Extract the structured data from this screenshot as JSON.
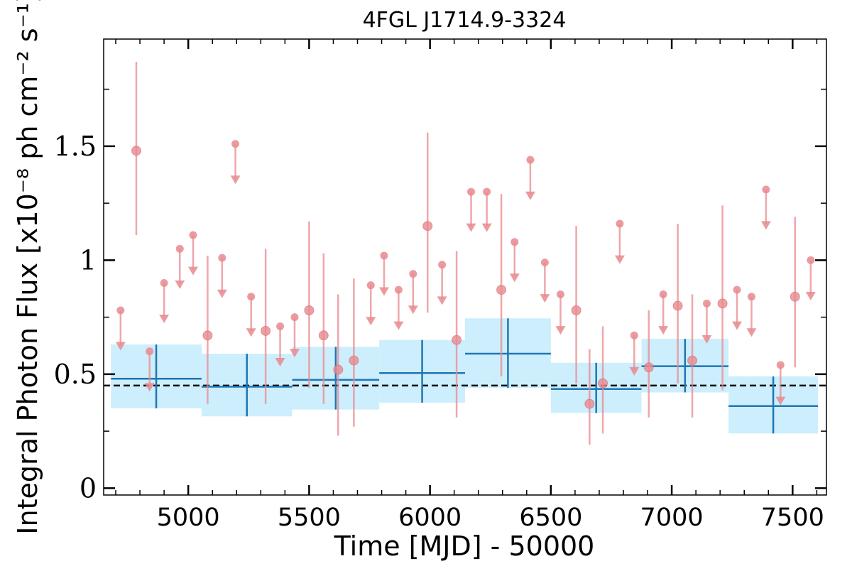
{
  "chart_data": {
    "type": "scatter",
    "title": "4FGL J1714.9-3324",
    "xlabel": "Time [MJD] - 50000",
    "ylabel": "Integral Photon Flux [x10⁻⁸ ph cm⁻² s⁻¹]",
    "xlim": [
      4650,
      7640
    ],
    "ylim": [
      -0.03,
      1.97
    ],
    "x_ticks": [
      5000,
      5500,
      6000,
      6500,
      7000,
      7500
    ],
    "x_tick_labels": [
      "5000",
      "5500",
      "6000",
      "6500",
      "7000",
      "7500"
    ],
    "y_ticks": [
      0,
      0.5,
      1,
      1.5
    ],
    "y_tick_labels": [
      "0",
      "0.5",
      "1",
      "1.5"
    ],
    "grid": false,
    "colors": {
      "short_bins": "#e88a8e",
      "long_bins": "#1f77b4",
      "band": "#cdeefc",
      "reference": "#000000"
    },
    "reference_line": {
      "y": 0.45,
      "style": "dashed"
    },
    "series": [
      {
        "points": [
          {
            "x": 4785,
            "y": 1.48,
            "yerr_low": 1.11,
            "yerr_high": 1.87
          },
          {
            "x": 5080,
            "y": 0.67,
            "yerr_low": 0.37,
            "yerr_high": 1.02
          },
          {
            "x": 5320,
            "y": 0.69,
            "yerr_low": 0.37,
            "yerr_high": 1.05
          },
          {
            "x": 5500,
            "y": 0.78,
            "yerr_low": 0.44,
            "yerr_high": 1.17
          },
          {
            "x": 5560,
            "y": 0.67,
            "yerr_low": 0.37,
            "yerr_high": 1.03
          },
          {
            "x": 5620,
            "y": 0.52,
            "yerr_low": 0.23,
            "yerr_high": 0.85
          },
          {
            "x": 5685,
            "y": 0.56,
            "yerr_low": 0.27,
            "yerr_high": 0.92
          },
          {
            "x": 5990,
            "y": 1.15,
            "yerr_low": 0.77,
            "yerr_high": 1.56
          },
          {
            "x": 6110,
            "y": 0.65,
            "yerr_low": 0.31,
            "yerr_high": 1.04
          },
          {
            "x": 6295,
            "y": 0.87,
            "yerr_low": 0.49,
            "yerr_high": 1.29
          },
          {
            "x": 6605,
            "y": 0.78,
            "yerr_low": 0.46,
            "yerr_high": 1.15
          },
          {
            "x": 6660,
            "y": 0.37,
            "yerr_low": 0.19,
            "yerr_high": 0.61
          },
          {
            "x": 6715,
            "y": 0.46,
            "yerr_low": 0.24,
            "yerr_high": 0.71
          },
          {
            "x": 6905,
            "y": 0.53,
            "yerr_low": 0.31,
            "yerr_high": 0.78
          },
          {
            "x": 7025,
            "y": 0.8,
            "yerr_low": 0.46,
            "yerr_high": 1.16
          },
          {
            "x": 7085,
            "y": 0.56,
            "yerr_low": 0.31,
            "yerr_high": 0.85
          },
          {
            "x": 7210,
            "y": 0.81,
            "yerr_low": 0.43,
            "yerr_high": 1.24
          },
          {
            "x": 7510,
            "y": 0.84,
            "yerr_low": 0.53,
            "yerr_high": 1.19
          }
        ],
        "upper_limits": [
          {
            "x": 4720,
            "y": 0.78
          },
          {
            "x": 4840,
            "y": 0.6
          },
          {
            "x": 4900,
            "y": 0.9
          },
          {
            "x": 4965,
            "y": 1.05
          },
          {
            "x": 5020,
            "y": 1.11
          },
          {
            "x": 5140,
            "y": 1.01
          },
          {
            "x": 5195,
            "y": 1.51
          },
          {
            "x": 5260,
            "y": 0.84
          },
          {
            "x": 5380,
            "y": 0.71
          },
          {
            "x": 5440,
            "y": 0.75
          },
          {
            "x": 5755,
            "y": 0.89
          },
          {
            "x": 5810,
            "y": 1.02
          },
          {
            "x": 5870,
            "y": 0.87
          },
          {
            "x": 5930,
            "y": 0.94
          },
          {
            "x": 6050,
            "y": 0.98
          },
          {
            "x": 6170,
            "y": 1.3
          },
          {
            "x": 6235,
            "y": 1.3
          },
          {
            "x": 6350,
            "y": 1.08
          },
          {
            "x": 6415,
            "y": 1.44
          },
          {
            "x": 6475,
            "y": 0.99
          },
          {
            "x": 6540,
            "y": 0.85
          },
          {
            "x": 6785,
            "y": 1.16
          },
          {
            "x": 6845,
            "y": 0.67
          },
          {
            "x": 6965,
            "y": 0.85
          },
          {
            "x": 7145,
            "y": 0.81
          },
          {
            "x": 7270,
            "y": 0.87
          },
          {
            "x": 7330,
            "y": 0.84
          },
          {
            "x": 7390,
            "y": 1.31
          },
          {
            "x": 7450,
            "y": 0.54
          },
          {
            "x": 7575,
            "y": 1.0
          }
        ]
      },
      {
        "bins": [
          {
            "x_start": 4680,
            "x_end": 5055,
            "y": 0.48,
            "y_low": 0.35,
            "y_high": 0.63
          },
          {
            "x_start": 5055,
            "x_end": 5430,
            "y": 0.445,
            "y_low": 0.315,
            "y_high": 0.59
          },
          {
            "x_start": 5430,
            "x_end": 5790,
            "y": 0.475,
            "y_low": 0.345,
            "y_high": 0.62
          },
          {
            "x_start": 5790,
            "x_end": 6145,
            "y": 0.505,
            "y_low": 0.375,
            "y_high": 0.65
          },
          {
            "x_start": 6145,
            "x_end": 6500,
            "y": 0.59,
            "y_low": 0.44,
            "y_high": 0.745
          },
          {
            "x_start": 6500,
            "x_end": 6875,
            "y": 0.435,
            "y_low": 0.33,
            "y_high": 0.55
          },
          {
            "x_start": 6875,
            "x_end": 7235,
            "y": 0.535,
            "y_low": 0.42,
            "y_high": 0.655
          },
          {
            "x_start": 7235,
            "x_end": 7605,
            "y": 0.36,
            "y_low": 0.24,
            "y_high": 0.49
          }
        ]
      }
    ]
  }
}
